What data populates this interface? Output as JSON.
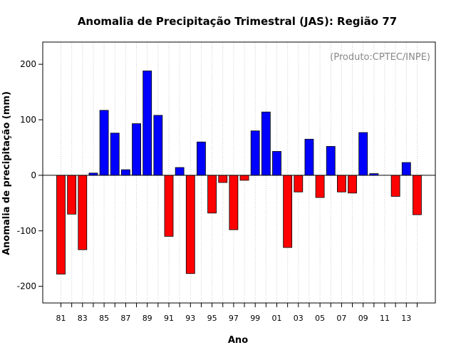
{
  "chart_data": {
    "type": "bar",
    "title": "Anomalia de Precipitação Trimestral (JAS): Região 77",
    "xlabel": "Ano",
    "ylabel": "Anomalia de precipitação (mm)",
    "annotation": "(Produto:CPTEC/INPE)",
    "ylim": [
      -230,
      240
    ],
    "yticks": [
      -200,
      -100,
      0,
      100,
      200
    ],
    "grid": "vertical dotted",
    "categories": [
      "81",
      "82",
      "83",
      "84",
      "85",
      "86",
      "87",
      "88",
      "89",
      "90",
      "91",
      "92",
      "93",
      "94",
      "95",
      "96",
      "97",
      "98",
      "99",
      "00",
      "01",
      "02",
      "03",
      "04",
      "05",
      "06",
      "07",
      "08",
      "09",
      "10",
      "11",
      "12",
      "13",
      "14"
    ],
    "xtick_labels": [
      "81",
      "83",
      "85",
      "87",
      "89",
      "91",
      "93",
      "95",
      "97",
      "99",
      "01",
      "03",
      "05",
      "07",
      "09",
      "11",
      "13"
    ],
    "values": [
      -178,
      -70,
      -134,
      4,
      117,
      76,
      10,
      93,
      188,
      108,
      -110,
      14,
      -177,
      60,
      -68,
      -13,
      -98,
      -9,
      80,
      114,
      43,
      -130,
      -30,
      65,
      -40,
      52,
      -30,
      -32,
      77,
      3,
      0,
      -38,
      23,
      -71
    ],
    "colors": {
      "positive": "#0000ff",
      "negative": "#ff0000",
      "grid": "#c8c8c8",
      "annotation": "#888888"
    }
  }
}
